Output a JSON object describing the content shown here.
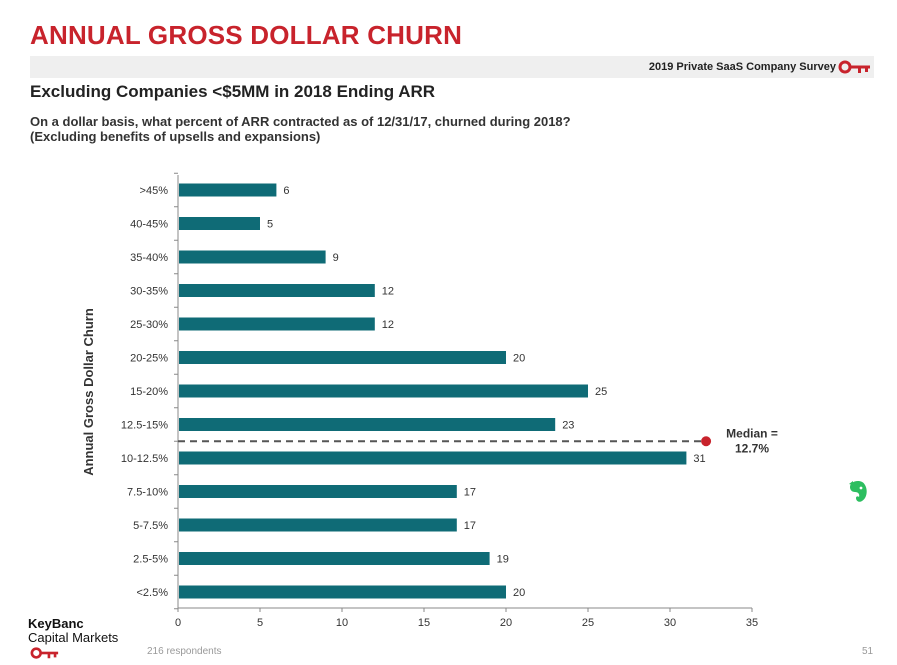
{
  "header": {
    "title": "ANNUAL GROSS DOLLAR CHURN",
    "survey_label": "2019 Private SaaS Company Survey",
    "subtitle": "Excluding Companies <$5MM in 2018 Ending ARR",
    "question_line1": "On a dollar basis, what percent of ARR contracted as of 12/31/17, churned during 2018?",
    "question_line2": "(Excluding benefits of upsells and expansions)"
  },
  "footer": {
    "brand_line1": "KeyBanc",
    "brand_line2": "Capital Markets",
    "respondents": "216 respondents",
    "page_number": "51"
  },
  "colors": {
    "title": "#c8232c",
    "bar": "#0f6b76",
    "median_marker": "#c8232c",
    "key_icon": "#c8232c",
    "evernote_icon": "#2dbe60"
  },
  "icons": {
    "survey_key": "key-icon",
    "logo_key": "key-icon",
    "side": "evernote-elephant-icon"
  },
  "chart_data": {
    "type": "bar",
    "orientation": "horizontal",
    "categories": [
      ">45%",
      "40-45%",
      "35-40%",
      "30-35%",
      "25-30%",
      "20-25%",
      "15-20%",
      "12.5-15%",
      "10-12.5%",
      "7.5-10%",
      "5-7.5%",
      "2.5-5%",
      "<2.5%"
    ],
    "values": [
      6,
      5,
      9,
      12,
      12,
      20,
      25,
      23,
      31,
      17,
      17,
      19,
      20
    ],
    "xlim": [
      0,
      35
    ],
    "xticks": [
      0,
      5,
      10,
      15,
      20,
      25,
      30,
      35
    ],
    "ylabel": "Annual Gross Dollar Churn",
    "xlabel": "",
    "grid": false,
    "legend": "none",
    "median": {
      "label": "Median =\n12.7%",
      "line1": "Median =",
      "line2": "12.7%",
      "position_between": [
        "12.5-15%",
        "10-12.5%"
      ],
      "marker_x": 32.2
    }
  }
}
